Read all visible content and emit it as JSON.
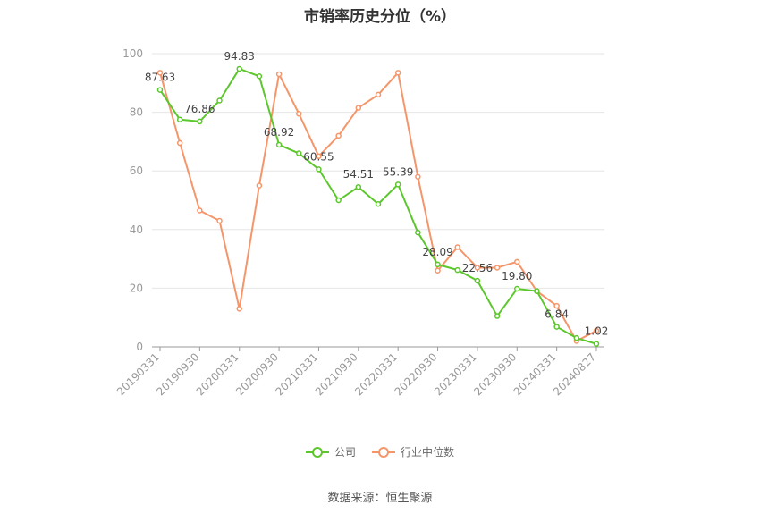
{
  "title": "市销率历史分位（%）",
  "source": "数据来源：恒生聚源",
  "chart_data": {
    "type": "line",
    "ylim": [
      0,
      100
    ],
    "yticks": [
      0,
      20,
      40,
      60,
      80,
      100
    ],
    "grid": true,
    "legend_position": "bottom",
    "x": [
      "20190331",
      "20190630",
      "20190930",
      "20191231",
      "20200331",
      "20200630",
      "20200930",
      "20201231",
      "20210331",
      "20210630",
      "20210930",
      "20211231",
      "20220331",
      "20220630",
      "20220930",
      "20221231",
      "20230331",
      "20230630",
      "20230930",
      "20231231",
      "20240331",
      "20240630",
      "20240827"
    ],
    "xtick_labels": [
      "20190331",
      "20190930",
      "20200331",
      "20200930",
      "20210331",
      "20210930",
      "20220331",
      "20220930",
      "20230331",
      "20230930",
      "20240331",
      "20240827"
    ],
    "series": [
      {
        "name": "公司",
        "color": "#5cc72c",
        "values": [
          87.63,
          77.5,
          76.86,
          84.0,
          94.83,
          92.3,
          68.92,
          66.0,
          60.55,
          50.0,
          54.51,
          48.7,
          55.39,
          39.0,
          28.09,
          26.2,
          22.56,
          10.5,
          19.8,
          19.0,
          6.84,
          3.0,
          1.02
        ],
        "labels": {
          "0": "87.63",
          "2": "76.86",
          "4": "94.83",
          "6": "68.92",
          "8": "60.55",
          "10": "54.51",
          "12": "55.39",
          "14": "28.09",
          "16": "22.56",
          "18": "19.80",
          "20": "6.84",
          "22": "1.02"
        }
      },
      {
        "name": "行业中位数",
        "color": "#f5956a",
        "values": [
          93.5,
          69.5,
          46.5,
          43.0,
          13.0,
          55.0,
          93.0,
          79.5,
          65.0,
          72.0,
          81.5,
          86.0,
          93.5,
          58.0,
          26.0,
          34.0,
          27.0,
          27.0,
          29.0,
          19.0,
          14.0,
          2.0,
          5.5
        ]
      }
    ]
  }
}
